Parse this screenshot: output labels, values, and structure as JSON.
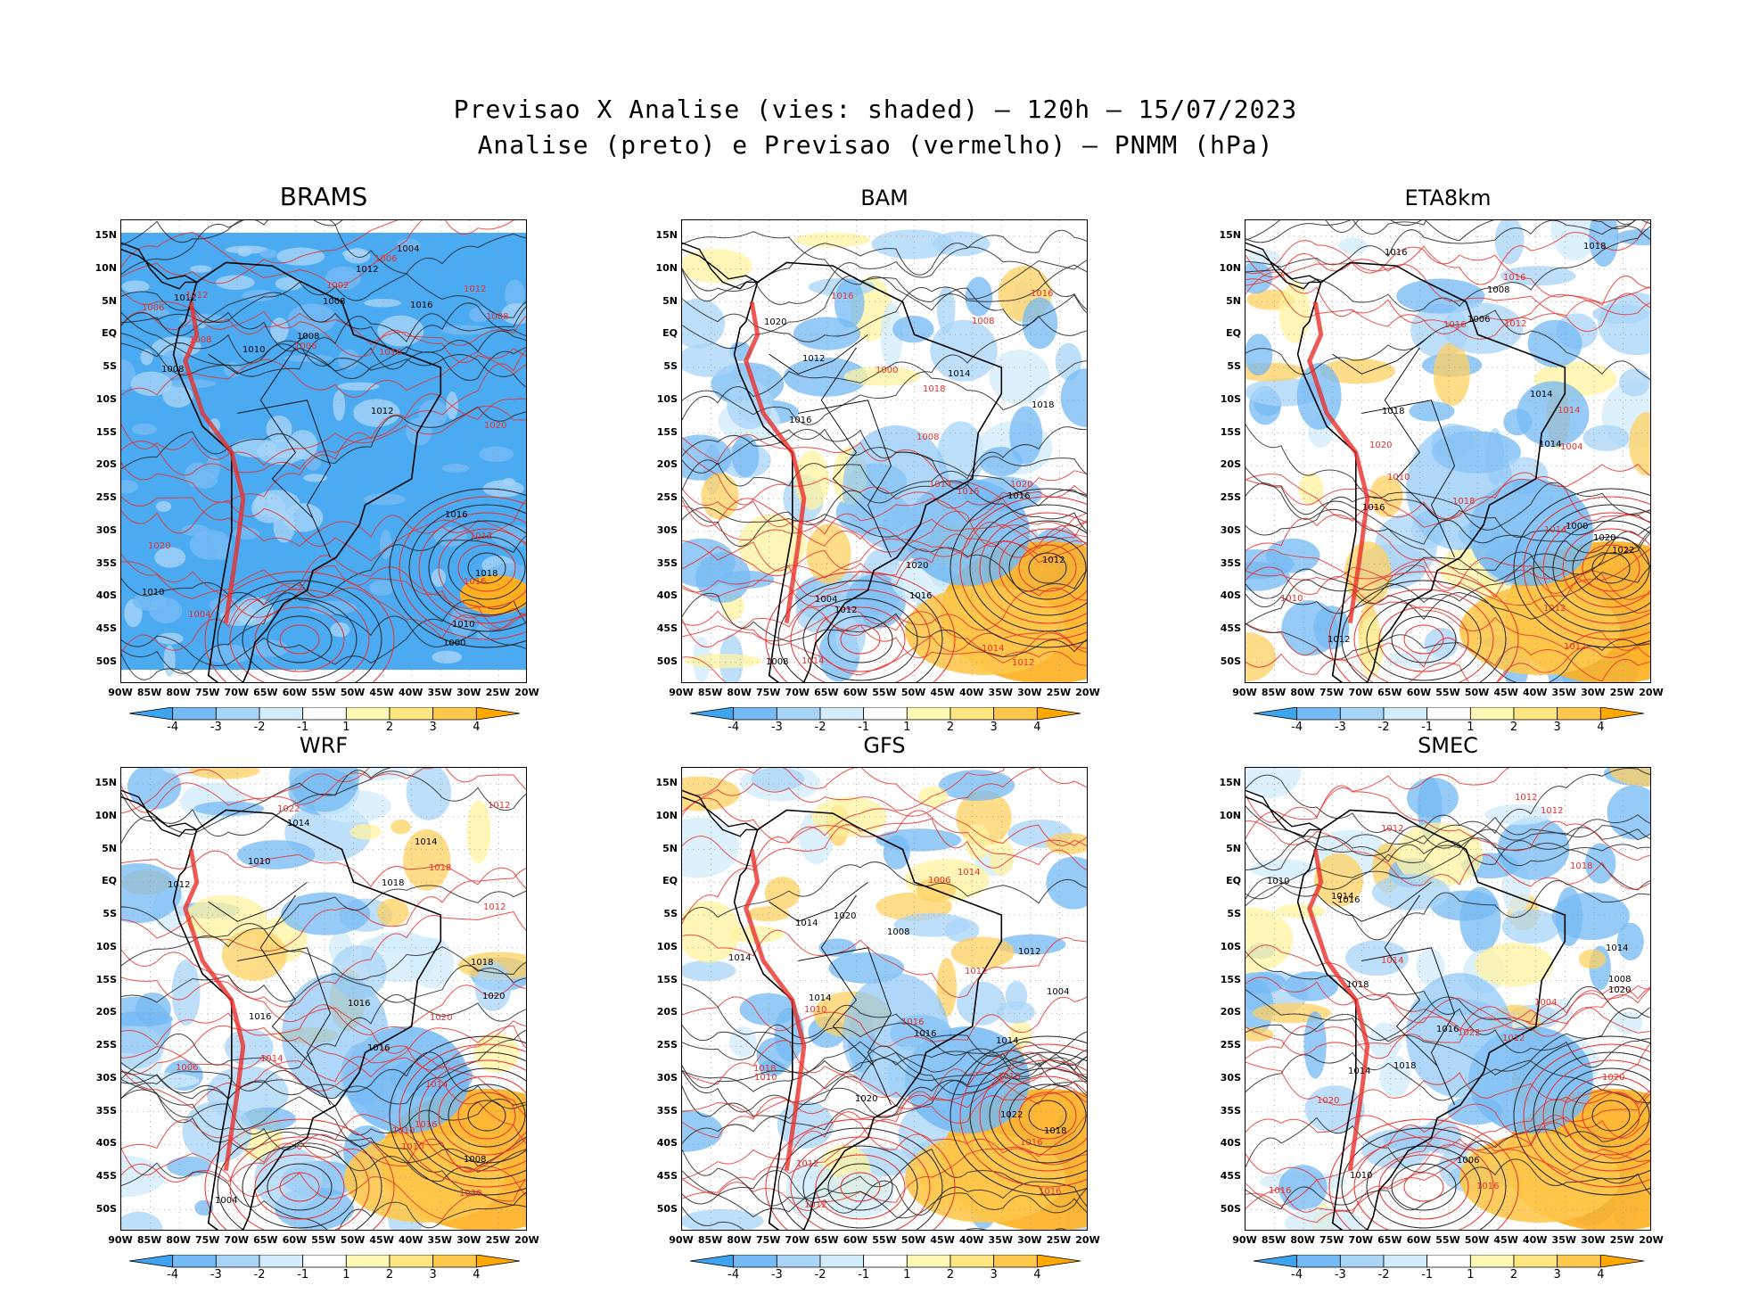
{
  "title": {
    "line1": "Previsao X Analise (vies: shaded) — 120h — 15/07/2023",
    "line2": "Analise (preto) e Previsao (vermelho) — PNMM (hPa)"
  },
  "axes": {
    "lat_labels": [
      "15N",
      "10N",
      "5N",
      "EQ",
      "5S",
      "10S",
      "15S",
      "20S",
      "25S",
      "30S",
      "35S",
      "40S",
      "45S",
      "50S"
    ],
    "lon_labels": [
      "90W",
      "85W",
      "80W",
      "75W",
      "70W",
      "65W",
      "60W",
      "55W",
      "50W",
      "45W",
      "40W",
      "35W",
      "30W",
      "25W",
      "20W"
    ]
  },
  "colorbar": {
    "labels": [
      "-4",
      "-3",
      "-2",
      "-1",
      "1",
      "2",
      "3",
      "4"
    ],
    "colors": [
      "#3fa4f0",
      "#74baf4",
      "#a8d4f8",
      "#d2ecfc",
      "#ffffff",
      "#fff8b4",
      "#ffe680",
      "#ffc84c",
      "#ffa800"
    ]
  },
  "colors": {
    "analysis": "#000000",
    "forecast": "#e8302a",
    "negative_bias": "#4aaaf2",
    "positive_bias": "#ffb020"
  },
  "panels": [
    {
      "name": "BRAMS",
      "labels": [
        "1008",
        "1006",
        "1010",
        "1012",
        "1008",
        "1006",
        "1012",
        "1008",
        "1010",
        "1012",
        "1016",
        "1020",
        "1016",
        "1020",
        "1012",
        "1016",
        "1018",
        "1012",
        "1004",
        "1008",
        "1000",
        "1002",
        "1008",
        "1004",
        "1012",
        "1016",
        "1010",
        "1006"
      ]
    },
    {
      "name": "BAM",
      "labels": [
        "1008",
        "1014",
        "1016",
        "1014",
        "1012",
        "1008",
        "1012",
        "1016",
        "1020",
        "1014",
        "1016",
        "1018",
        "1016",
        "1020",
        "1012",
        "1016",
        "1018",
        "1000",
        "1004",
        "1008",
        "1020",
        "1016",
        "1014",
        "1012"
      ]
    },
    {
      "name": "ETA8km",
      "labels": [
        "1008",
        "1012",
        "1014",
        "1010",
        "1016",
        "1012",
        "1016",
        "1018",
        "1020",
        "1012",
        "1014",
        "1016",
        "1018",
        "1010",
        "1000",
        "1004",
        "1006",
        "1020",
        "1022",
        "1014",
        "1012",
        "1016",
        "1018",
        "1014"
      ]
    },
    {
      "name": "WRF",
      "labels": [
        "1012",
        "1010",
        "1008",
        "1014",
        "1016",
        "1012",
        "1010",
        "1014",
        "1018",
        "1020",
        "1016",
        "1022",
        "1018",
        "1020",
        "1014",
        "1010",
        "1004",
        "1006",
        "1016",
        "1018",
        "1014",
        "1012",
        "1020",
        "1016"
      ]
    },
    {
      "name": "GFS",
      "labels": [
        "1008",
        "1012",
        "1014",
        "1016",
        "1012",
        "1010",
        "1014",
        "1018",
        "1020",
        "1016",
        "1014",
        "1012",
        "1018",
        "1010",
        "1004",
        "1006",
        "1022",
        "1016",
        "1014",
        "1018",
        "1020",
        "1012",
        "1016",
        "1014"
      ]
    },
    {
      "name": "SMEC",
      "labels": [
        "1008",
        "1012",
        "1010",
        "1014",
        "1016",
        "1012",
        "1018",
        "1020",
        "1014",
        "1016",
        "1018",
        "1020",
        "1010",
        "1004",
        "1006",
        "1022",
        "1016",
        "1012",
        "1014",
        "1018",
        "1020",
        "1016",
        "1014",
        "1012"
      ]
    }
  ]
}
